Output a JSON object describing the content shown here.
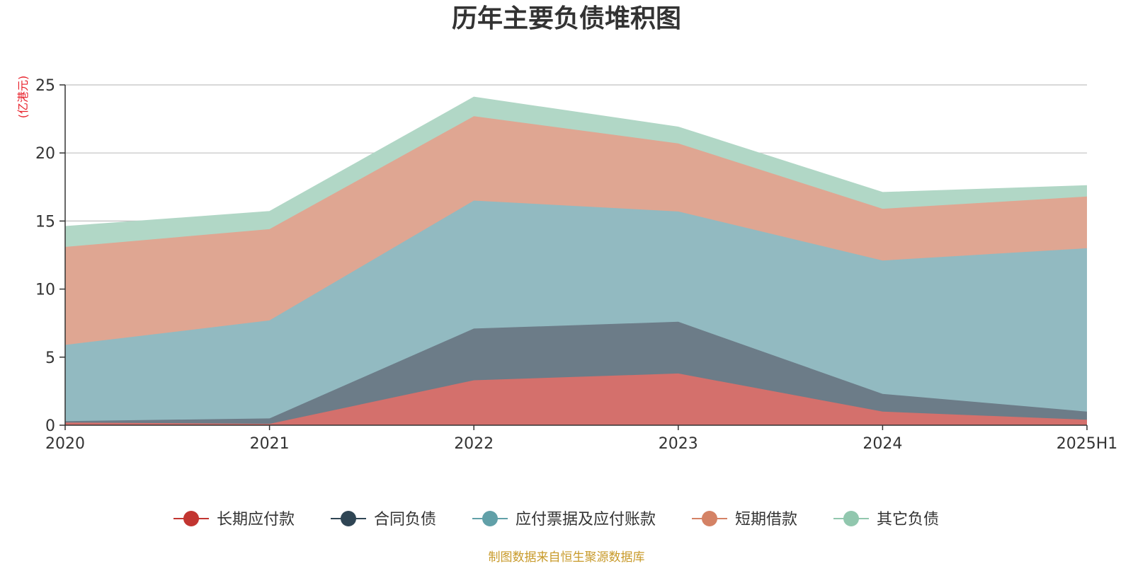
{
  "chart_data": {
    "type": "area",
    "stacked": true,
    "title": "历年主要负债堆积图",
    "ylabel": "(亿港元)",
    "xlabel": "",
    "categories": [
      "2020",
      "2021",
      "2022",
      "2023",
      "2024",
      "2025H1"
    ],
    "ylim": [
      0,
      25
    ],
    "yticks": [
      0,
      5,
      10,
      15,
      20,
      25
    ],
    "grid": true,
    "legend_position": "bottom",
    "series": [
      {
        "name": "长期应付款",
        "color": "#c23531",
        "fill": "#d4706c",
        "values": [
          0.2,
          0.1,
          3.3,
          3.8,
          1.0,
          0.4
        ]
      },
      {
        "name": "合同负债",
        "color": "#2f4554",
        "fill": "#6c7c88",
        "values": [
          0.1,
          0.4,
          3.8,
          3.8,
          1.3,
          0.6
        ]
      },
      {
        "name": "应付票据及应付账款",
        "color": "#61a0a8",
        "fill": "#92bac1",
        "values": [
          5.6,
          7.2,
          9.4,
          8.1,
          9.8,
          12.0
        ]
      },
      {
        "name": "短期借款",
        "color": "#d48265",
        "fill": "#dfa692",
        "values": [
          7.2,
          6.7,
          6.2,
          5.0,
          3.8,
          3.8
        ]
      },
      {
        "name": "其它负债",
        "color": "#91c7ae",
        "fill": "#b1d7c6",
        "values": [
          1.5,
          1.3,
          1.4,
          1.2,
          1.2,
          0.8
        ]
      }
    ],
    "source": "制图数据来自恒生聚源数据库"
  }
}
